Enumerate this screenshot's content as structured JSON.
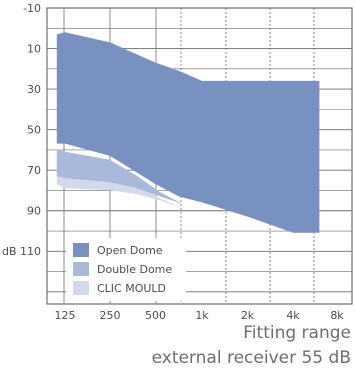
{
  "chart_data": {
    "type": "area",
    "x_categories": [
      "125",
      "250",
      "500",
      "1k",
      "2k",
      "4k",
      "8k"
    ],
    "y_ticks": [
      -10,
      10,
      30,
      50,
      70,
      90,
      110
    ],
    "y_tick_labels": [
      "-10",
      "10",
      "30",
      "50",
      "70",
      "90",
      "dB 110"
    ],
    "ylim": [
      -10,
      120
    ],
    "y_inverted": true,
    "grid": "on",
    "legend_placement": "bottom-left",
    "series": [
      {
        "name": "CLIC MOULD",
        "color": "#d3d9ea",
        "x": [
          0.6,
          1,
          2,
          2.6,
          3.1,
          3.6,
          3.9
        ],
        "top": [
          66,
          67,
          70,
          77,
          84,
          89,
          91
        ],
        "bottom": [
          77,
          79,
          80,
          82,
          85,
          89,
          91
        ]
      },
      {
        "name": "Double Dome",
        "color": "#a9b9d9",
        "x": [
          0.6,
          1,
          2,
          2.6,
          3.1,
          3.6,
          3.9
        ],
        "top": [
          60,
          61,
          65,
          73,
          81,
          87,
          89
        ],
        "bottom": [
          73,
          74,
          76,
          79,
          83,
          87,
          89
        ]
      },
      {
        "name": "Open Dome",
        "color": "#7891c1",
        "x": [
          0.6,
          1,
          2,
          3,
          3.5,
          4,
          5,
          6,
          6.6
        ],
        "top": [
          3,
          2,
          7,
          17,
          21,
          26,
          26,
          26,
          26
        ],
        "bottom": [
          57,
          57,
          63,
          77,
          83,
          86,
          93,
          101,
          101
        ]
      }
    ]
  },
  "caption": {
    "line1": "Fitting range",
    "line2": "external receiver 55 dB"
  }
}
